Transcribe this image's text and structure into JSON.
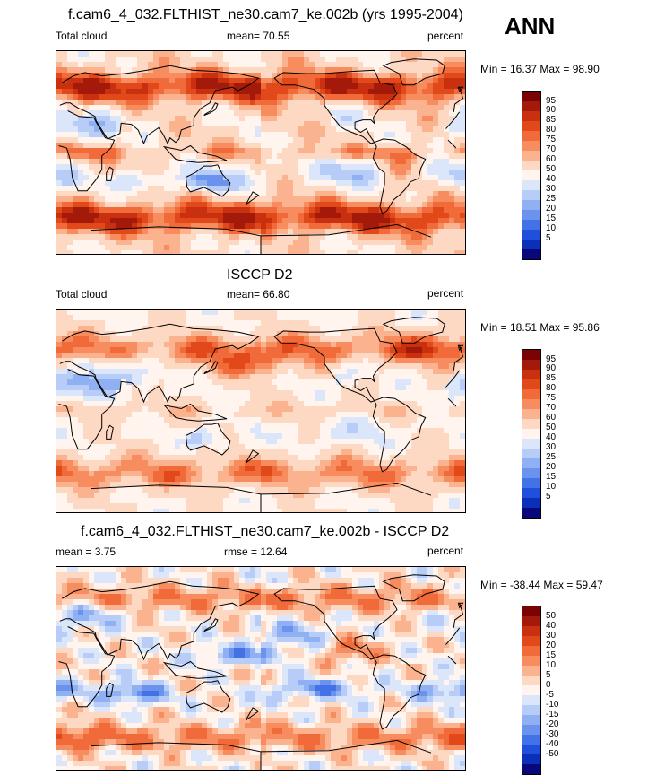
{
  "season": "ANN",
  "panels": [
    {
      "title": "f.cam6_4_032.FLTHIST_ne30.cam7_ke.002b (yrs 1995-2004)",
      "left_label": "Total cloud",
      "center_label": "mean=  70.55",
      "right_label": "percent",
      "minmax": "Min =  16.37 Max =  98.90",
      "colorbar": {
        "labels": [
          "95",
          "90",
          "85",
          "80",
          "75",
          "70",
          "60",
          "50",
          "40",
          "30",
          "25",
          "20",
          "15",
          "10",
          "5"
        ],
        "colors": [
          "#7a0403",
          "#a41a0a",
          "#c9300f",
          "#e1481a",
          "#f06a3a",
          "#f78c5e",
          "#fbb38f",
          "#fdd8c3",
          "#fff5ee",
          "#dbe6fa",
          "#b7ccf6",
          "#8fb0f2",
          "#6b93ee",
          "#4372e6",
          "#1f4fdb",
          "#0b2fb8",
          "#08087a"
        ]
      },
      "field": "model"
    },
    {
      "title": "ISCCP D2",
      "left_label": "Total cloud",
      "center_label": "mean=  66.80",
      "right_label": "percent",
      "minmax": "Min =  18.51 Max =  95.86",
      "colorbar": {
        "labels": [
          "95",
          "90",
          "85",
          "80",
          "75",
          "70",
          "60",
          "50",
          "40",
          "30",
          "25",
          "20",
          "15",
          "10",
          "5"
        ],
        "colors": [
          "#7a0403",
          "#a41a0a",
          "#c9300f",
          "#e1481a",
          "#f06a3a",
          "#f78c5e",
          "#fbb38f",
          "#fdd8c3",
          "#fff5ee",
          "#dbe6fa",
          "#b7ccf6",
          "#8fb0f2",
          "#6b93ee",
          "#4372e6",
          "#1f4fdb",
          "#0b2fb8",
          "#08087a"
        ]
      },
      "field": "obs"
    },
    {
      "title": "f.cam6_4_032.FLTHIST_ne30.cam7_ke.002b - ISCCP D2",
      "left_label": "mean =   3.75",
      "center_label": "rmse =  12.64",
      "right_label": "percent",
      "minmax": "Min = -38.44 Max =  59.47",
      "colorbar": {
        "labels": [
          "50",
          "40",
          "30",
          "20",
          "15",
          "10",
          "5",
          "0",
          "-5",
          "-10",
          "-15",
          "-20",
          "-30",
          "-40",
          "-50"
        ],
        "colors": [
          "#7a0403",
          "#a41a0a",
          "#c9300f",
          "#e1481a",
          "#f06a3a",
          "#f78c5e",
          "#fbb38f",
          "#fdd8c3",
          "#fff5ee",
          "#dbe6fa",
          "#b7ccf6",
          "#8fb0f2",
          "#6b93ee",
          "#4372e6",
          "#1f4fdb",
          "#0b2fb8",
          "#08087a"
        ]
      },
      "field": "diff"
    }
  ]
}
